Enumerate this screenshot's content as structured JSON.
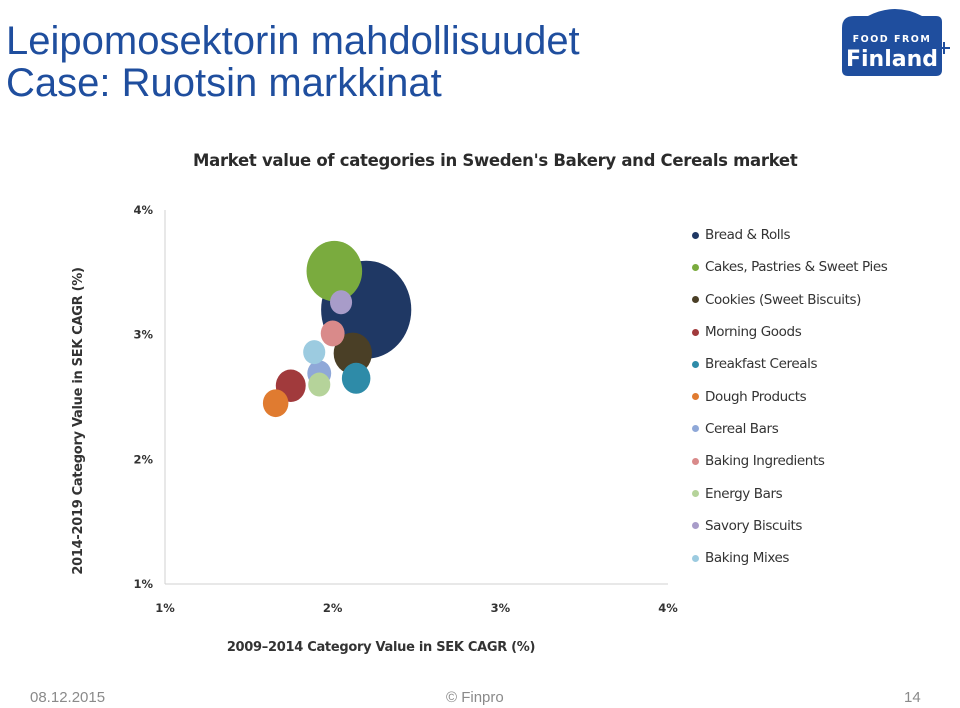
{
  "slide": {
    "title_line1": "Leipomosektorin mahdollisuudet",
    "title_line2": "Case: Ruotsin markkinat",
    "footer_date": "08.12.2015",
    "footer_copyright": "© Finpro",
    "footer_page": "14"
  },
  "logo": {
    "line1": "FOOD FROM",
    "line2": "Finland",
    "color": "#1f4e9e"
  },
  "chart_data": {
    "type": "bubble",
    "title": "Market value of categories in Sweden's Bakery and Cereals market",
    "xlabel": "2009–2014 Category Value in SEK CAGR (%)",
    "ylabel": "2014-2019 Category Value in SEK CAGR (%)",
    "xlim": [
      1,
      4
    ],
    "ylim": [
      1,
      4
    ],
    "x_ticks": [
      "1%",
      "2%",
      "3%",
      "4%"
    ],
    "y_ticks": [
      "1%",
      "2%",
      "3%",
      "4%"
    ],
    "grid": false,
    "legend_position": "right",
    "series": [
      {
        "name": "Bread & Rolls",
        "x": 2.2,
        "y": 3.2,
        "size": 100,
        "color": "#1f3864"
      },
      {
        "name": "Cakes, Pastries & Sweet Pies",
        "x": 2.01,
        "y": 3.51,
        "size": 38,
        "color": "#7aab3e"
      },
      {
        "name": "Cookies (Sweet Biscuits)",
        "x": 2.12,
        "y": 2.85,
        "size": 18,
        "color": "#4a3f26"
      },
      {
        "name": "Morning Goods",
        "x": 1.75,
        "y": 2.59,
        "size": 11,
        "color": "#a13a3c"
      },
      {
        "name": "Breakfast Cereals",
        "x": 2.14,
        "y": 2.65,
        "size": 10,
        "color": "#2e8ba8"
      },
      {
        "name": "Dough Products",
        "x": 1.66,
        "y": 2.45,
        "size": 8,
        "color": "#e07b30"
      },
      {
        "name": "Cereal Bars",
        "x": 1.92,
        "y": 2.69,
        "size": 7,
        "color": "#8fa8d8"
      },
      {
        "name": "Baking Ingredients",
        "x": 2.0,
        "y": 3.01,
        "size": 7,
        "color": "#d98a8a"
      },
      {
        "name": "Energy Bars",
        "x": 1.92,
        "y": 2.6,
        "size": 6,
        "color": "#b5d39a"
      },
      {
        "name": "Savory Biscuits",
        "x": 2.05,
        "y": 3.26,
        "size": 6,
        "color": "#a89cc9"
      },
      {
        "name": "Baking Mixes",
        "x": 1.89,
        "y": 2.86,
        "size": 6,
        "color": "#9ccbe0"
      }
    ]
  }
}
